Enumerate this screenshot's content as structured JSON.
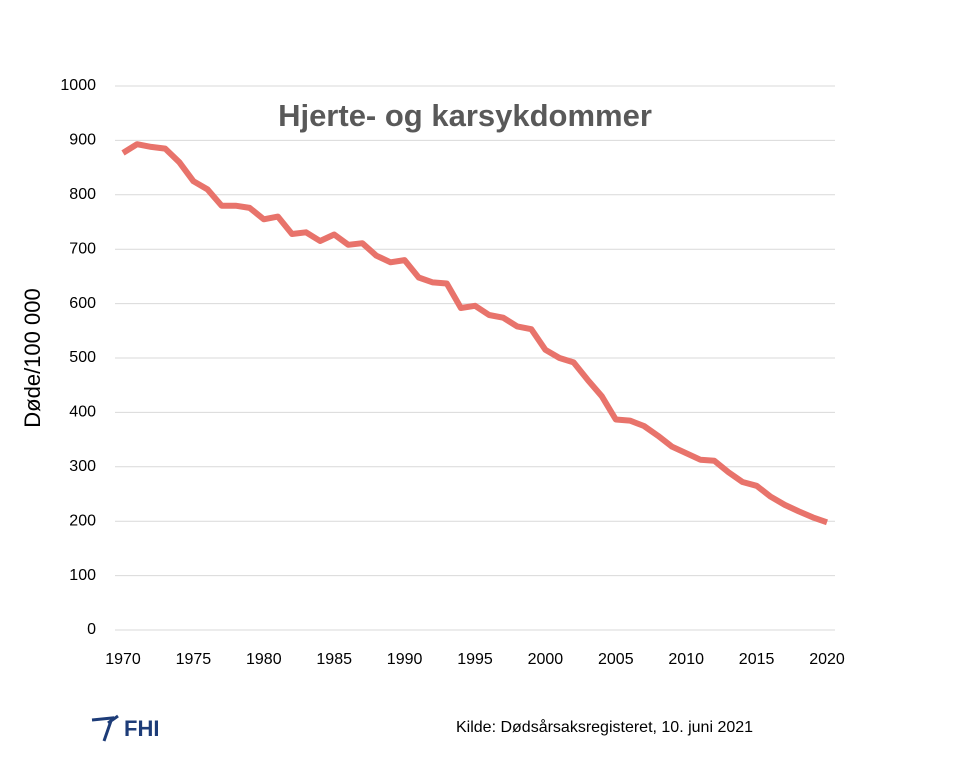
{
  "chart_data": {
    "type": "line",
    "title": "Hjerte- og karsykdommer",
    "y_label": "Døde/100 000",
    "source": "Kilde: Dødsårsaksregisteret, 10. juni 2021",
    "logo": "FHI",
    "x": [
      1970,
      1971,
      1972,
      1973,
      1974,
      1975,
      1976,
      1977,
      1978,
      1979,
      1980,
      1981,
      1982,
      1983,
      1984,
      1985,
      1986,
      1987,
      1988,
      1989,
      1990,
      1991,
      1992,
      1993,
      1994,
      1995,
      1996,
      1997,
      1998,
      1999,
      2000,
      2001,
      2002,
      2003,
      2004,
      2005,
      2006,
      2007,
      2008,
      2009,
      2010,
      2011,
      2012,
      2013,
      2014,
      2015,
      2016,
      2017,
      2018,
      2019,
      2020
    ],
    "series": [
      {
        "name": "Hjerte- og karsykdommer",
        "color": "#e8736b",
        "values": [
          877,
          893,
          888,
          885,
          860,
          825,
          810,
          780,
          780,
          776,
          755,
          760,
          728,
          731,
          715,
          727,
          708,
          711,
          688,
          676,
          680,
          648,
          639,
          637,
          592,
          596,
          579,
          574,
          558,
          553,
          515,
          500,
          492,
          460,
          430,
          387,
          385,
          375,
          357,
          337,
          325,
          313,
          311,
          290,
          272,
          265,
          245,
          230,
          218,
          207,
          198
        ]
      }
    ],
    "xlim": [
      1970,
      2020
    ],
    "xticks": [
      1970,
      1975,
      1980,
      1985,
      1990,
      1995,
      2000,
      2005,
      2010,
      2015,
      2020
    ],
    "ylim": [
      0,
      1000
    ],
    "yticks": [
      0,
      100,
      200,
      300,
      400,
      500,
      600,
      700,
      800,
      900,
      1000
    ],
    "grid": true
  }
}
